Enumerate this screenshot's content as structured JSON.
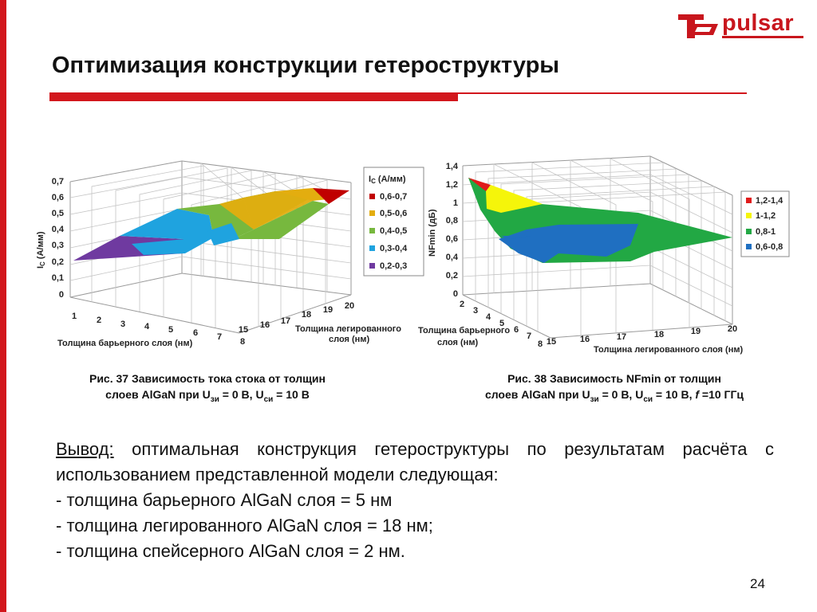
{
  "logo": {
    "text": "pulsar"
  },
  "slide": {
    "title": "Оптимизация конструкции гетероструктуры",
    "page_number": "24"
  },
  "captions": {
    "fig37": {
      "line1": "Рис. 37 Зависимость тока стока от толщин",
      "line2_pre": "слоев AlGaN при U",
      "sub1": "зи",
      "mid": " = 0 В, U",
      "sub2": "си",
      "post": " = 10 В"
    },
    "fig38": {
      "line1": "Рис. 38 Зависимость NFmin от толщин",
      "line2_pre": "слоев AlGaN  при U",
      "sub1": "зи",
      "mid": " = 0 В, U",
      "sub2": "си",
      "post_a": " = 10 В, ",
      "f": "f",
      "post_b": " =10 ГГц"
    }
  },
  "conclusion": {
    "heading": "Вывод:",
    "intro": " оптимальная конструкция гетероструктуры по результатам расчёта с использованием представленной модели  следующая:",
    "items": [
      "- толщина барьерного AlGaN слоя = 5 нм",
      "- толщина легированного AlGaN слоя = 18 нм;",
      "- толщина спейсерного  AlGaN слоя  = 2 нм."
    ]
  },
  "chart_data": [
    {
      "type": "surface",
      "z_label": "I",
      "z_label_sub": "С",
      "z_label_unit": " (А/мм)",
      "z_ticks": [
        "0",
        "0,1",
        "0,2",
        "0,3",
        "0,4",
        "0,5",
        "0,6",
        "0,7"
      ],
      "zlim": [
        0,
        0.7
      ],
      "x_label": "Толщина барьерного слоя (нм)",
      "x_ticks": [
        "1",
        "2",
        "3",
        "4",
        "5",
        "6",
        "7",
        "8"
      ],
      "y_label_line1": "Толщина легированного",
      "y_label_line2": "слоя (нм)",
      "y_ticks": [
        "15",
        "16",
        "17",
        "18",
        "19",
        "20"
      ],
      "legend_title": "I",
      "legend_title_sub": "С",
      "legend_title_unit": " (А/мм)",
      "legend": [
        {
          "label": "0,6-0,7",
          "color": "#c00000"
        },
        {
          "label": "0,5-0,6",
          "color": "#e3ad0f"
        },
        {
          "label": "0,4-0,5",
          "color": "#77b83e"
        },
        {
          "label": "0,3-0,4",
          "color": "#1fa3df"
        },
        {
          "label": "0,2-0,3",
          "color": "#6f3aa0"
        }
      ]
    },
    {
      "type": "surface",
      "z_label": "NFmin (дБ)",
      "z_ticks": [
        "0",
        "0,2",
        "0,4",
        "0,6",
        "0,8",
        "1",
        "1,2",
        "1,4"
      ],
      "zlim": [
        0,
        1.4
      ],
      "x_label": "Толщина барьерного",
      "x_label_2": "слоя (нм)",
      "x_ticks": [
        "2",
        "3",
        "4",
        "5",
        "6",
        "7",
        "8"
      ],
      "y_label": "Толщина легированного слоя (нм)",
      "y_ticks": [
        "15",
        "16",
        "17",
        "18",
        "19",
        "20"
      ],
      "legend": [
        {
          "label": "1,2-1,4",
          "color": "#e01b1b"
        },
        {
          "label": "1-1,2",
          "color": "#f5f50a"
        },
        {
          "label": "0,8-1",
          "color": "#22a844"
        },
        {
          "label": "0,6-0,8",
          "color": "#1f6fc1"
        }
      ]
    }
  ]
}
